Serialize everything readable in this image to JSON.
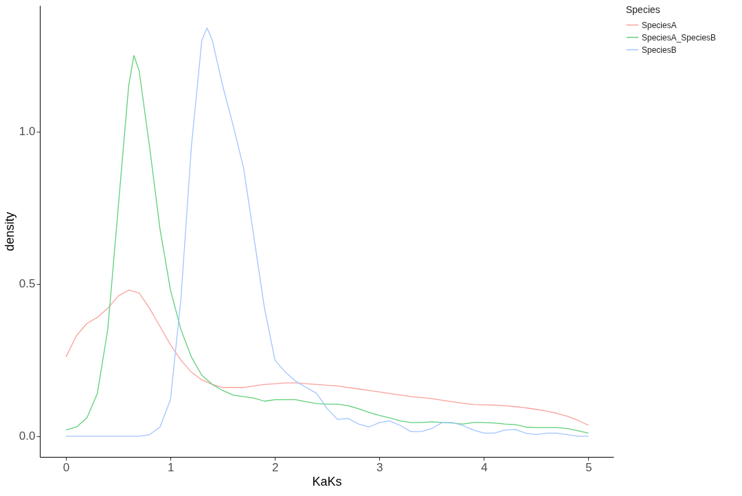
{
  "chart_data": {
    "type": "line",
    "xlabel": "KaKs",
    "ylabel": "density",
    "legend_title": "Species",
    "legend": "right",
    "grid": false,
    "marker": "none",
    "line_style": "solid",
    "xlim": [
      -0.25,
      5.24
    ],
    "xticks": [
      0,
      1,
      2,
      3,
      4,
      5
    ],
    "ylim": [
      -0.068,
      1.414
    ],
    "yticks": [
      {
        "value": 0,
        "label": "0.0"
      },
      {
        "value": 0.5,
        "label": "0.5"
      },
      {
        "value": 1,
        "label": "1.0"
      }
    ],
    "series": [
      {
        "name": "SpeciesA",
        "color": "#f9a19b",
        "x": [
          0,
          0.1,
          0.2,
          0.3,
          0.4,
          0.5,
          0.6,
          0.7,
          0.8,
          0.9,
          1.0,
          1.1,
          1.2,
          1.3,
          1.4,
          1.5,
          1.6,
          1.7,
          1.8,
          1.9,
          2.0,
          2.1,
          2.2,
          2.3,
          2.4,
          2.5,
          2.6,
          2.7,
          2.8,
          2.9,
          3.0,
          3.1,
          3.2,
          3.3,
          3.4,
          3.5,
          3.6,
          3.7,
          3.8,
          3.9,
          4.0,
          4.1,
          4.2,
          4.3,
          4.4,
          4.5,
          4.6,
          4.7,
          4.8,
          4.9,
          5.0
        ],
        "values": [
          0.26,
          0.33,
          0.37,
          0.39,
          0.42,
          0.46,
          0.48,
          0.47,
          0.42,
          0.36,
          0.3,
          0.25,
          0.21,
          0.185,
          0.17,
          0.16,
          0.16,
          0.16,
          0.165,
          0.17,
          0.172,
          0.175,
          0.175,
          0.172,
          0.17,
          0.167,
          0.165,
          0.16,
          0.155,
          0.15,
          0.145,
          0.14,
          0.135,
          0.13,
          0.127,
          0.123,
          0.118,
          0.113,
          0.108,
          0.104,
          0.103,
          0.102,
          0.1,
          0.097,
          0.093,
          0.088,
          0.082,
          0.075,
          0.065,
          0.052,
          0.036
        ]
      },
      {
        "name": "SpeciesA_SpeciesB",
        "color": "#5fcf79",
        "x": [
          0,
          0.1,
          0.2,
          0.3,
          0.4,
          0.5,
          0.6,
          0.65,
          0.7,
          0.8,
          0.9,
          1.0,
          1.1,
          1.2,
          1.3,
          1.4,
          1.5,
          1.6,
          1.7,
          1.8,
          1.9,
          2.0,
          2.1,
          2.2,
          2.3,
          2.4,
          2.5,
          2.6,
          2.7,
          2.8,
          2.9,
          3.0,
          3.1,
          3.2,
          3.3,
          3.4,
          3.5,
          3.6,
          3.7,
          3.8,
          3.9,
          4.0,
          4.1,
          4.2,
          4.3,
          4.4,
          4.5,
          4.6,
          4.7,
          4.8,
          4.9,
          5.0
        ],
        "values": [
          0.02,
          0.03,
          0.06,
          0.14,
          0.35,
          0.75,
          1.15,
          1.25,
          1.2,
          0.95,
          0.68,
          0.48,
          0.35,
          0.26,
          0.2,
          0.17,
          0.15,
          0.135,
          0.13,
          0.125,
          0.115,
          0.12,
          0.12,
          0.12,
          0.113,
          0.107,
          0.105,
          0.105,
          0.1,
          0.09,
          0.078,
          0.068,
          0.06,
          0.05,
          0.045,
          0.045,
          0.047,
          0.045,
          0.043,
          0.04,
          0.045,
          0.045,
          0.043,
          0.04,
          0.038,
          0.03,
          0.028,
          0.028,
          0.028,
          0.025,
          0.018,
          0.01
        ]
      },
      {
        "name": "SpeciesB",
        "color": "#a0c4ff",
        "x": [
          0,
          0.1,
          0.2,
          0.3,
          0.4,
          0.5,
          0.6,
          0.7,
          0.8,
          0.9,
          1.0,
          1.1,
          1.2,
          1.3,
          1.35,
          1.4,
          1.5,
          1.6,
          1.7,
          1.8,
          1.9,
          2.0,
          2.1,
          2.2,
          2.3,
          2.4,
          2.5,
          2.6,
          2.7,
          2.8,
          2.9,
          3.0,
          3.1,
          3.2,
          3.3,
          3.4,
          3.5,
          3.6,
          3.7,
          3.8,
          3.9,
          4.0,
          4.1,
          4.2,
          4.3,
          4.4,
          4.5,
          4.6,
          4.7,
          4.8,
          4.9,
          5.0
        ],
        "values": [
          0,
          0,
          0,
          0,
          0,
          0,
          0,
          0,
          0.005,
          0.03,
          0.12,
          0.45,
          0.95,
          1.3,
          1.34,
          1.3,
          1.15,
          1.02,
          0.88,
          0.65,
          0.42,
          0.25,
          0.21,
          0.18,
          0.16,
          0.14,
          0.09,
          0.055,
          0.058,
          0.04,
          0.03,
          0.045,
          0.05,
          0.035,
          0.015,
          0.015,
          0.025,
          0.045,
          0.045,
          0.035,
          0.02,
          0.01,
          0.01,
          0.02,
          0.022,
          0.01,
          0.005,
          0.01,
          0.01,
          0.005,
          0,
          0
        ]
      }
    ]
  }
}
